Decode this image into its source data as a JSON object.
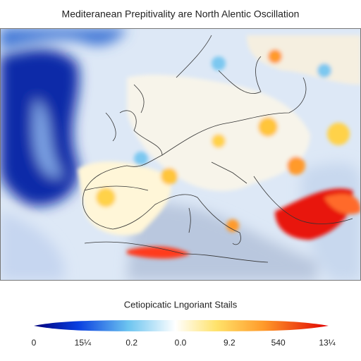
{
  "title": "Mediteranean Prepitivality are North Alentic Oscillation",
  "colorbar": {
    "label": "Cetiopicatic Lngoriant Stails",
    "ticks": [
      "0",
      "15¼",
      "0.2",
      "0.0",
      "9.2",
      "540",
      "13¼"
    ]
  }
}
